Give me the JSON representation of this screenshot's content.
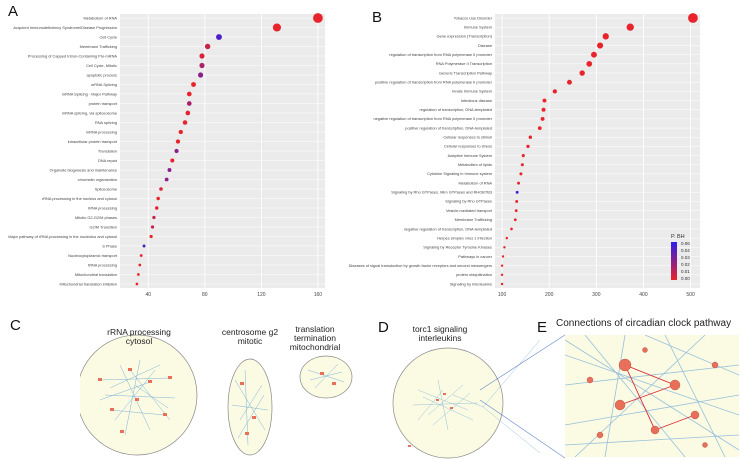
{
  "panel_labels": {
    "a": "A",
    "b": "B",
    "c": "C",
    "d": "D",
    "e": "E"
  },
  "colors": {
    "low": "#e8232b",
    "high": "#2b1ee8",
    "panel_bg": "#ebebeb",
    "ellipse_fill": "#fbfbe4",
    "node": "#e8705a",
    "edge": "#7fb2d8",
    "edge_red": "#d7303a"
  },
  "chart_data": [
    {
      "type": "scatter",
      "id": "A",
      "terms": [
        "Metabolism of RNA",
        "Acquired Immunodeficiency Syndrome/Disease Progression",
        "Cell Cycle",
        "Membrane Trafficking",
        "Processing of Capped Intron-Containing Pre-mRNA",
        "Cell Cycle, Mitotic",
        "apoptotic process",
        "mRNA Splicing",
        "mRNA Splicing - Major Pathway",
        "protein transport",
        "mRNA splicing, via spliceosome",
        "RNA splicing",
        "mRNA processing",
        "intracellular protein transport",
        "Translation",
        "DNA repair",
        "Organelle biogenesis and maintenance",
        "chromatin organization",
        "Spliceosome",
        "rRNA processing in the nucleus and cytosol",
        "rRNA processing",
        "Mitotic G2-G2/M phases",
        "G2/M Transition",
        "Major pathway of rRNA processing in the nucleolus and cytosol",
        "S Phase",
        "Nucleocytoplasmic transport",
        "tRNA processing",
        "Mitochondrial translation",
        "Mitochondrial translation initiation"
      ],
      "values": [
        160,
        131,
        90,
        82,
        78,
        78,
        77,
        72,
        69,
        69,
        68,
        66,
        63,
        61,
        60,
        57,
        55,
        53,
        49,
        47,
        46,
        44,
        43,
        42,
        37,
        35,
        34,
        33,
        32
      ],
      "padj": [
        0.06,
        0.06,
        0.01,
        0.05,
        0.055,
        0.04,
        0.03,
        0.06,
        0.06,
        0.04,
        0.058,
        0.06,
        0.06,
        0.06,
        0.03,
        0.06,
        0.03,
        0.03,
        0.055,
        0.06,
        0.06,
        0.05,
        0.05,
        0.06,
        0.01,
        0.06,
        0.06,
        0.06,
        0.06
      ],
      "ticks": [
        "40",
        "80",
        "120",
        "160"
      ],
      "xlim": [
        20,
        165
      ]
    },
    {
      "type": "scatter",
      "id": "B",
      "terms": [
        "Tobacco Use Disorder",
        "Immune System",
        "Gene expression (Transcription)",
        "Disease",
        "regulation of transcription from RNA polymerase II promoter",
        "RNA Polymerase II Transcription",
        "Generic Transcription Pathway",
        "positive regulation of transcription from RNA polymerase II promoter",
        "Innate Immune System",
        "Infectious disease",
        "regulation of transcription, DNA-templated",
        "negative regulation of transcription from RNA polymerase II promoter",
        "positive regulation of transcription, DNA-templated",
        "Cellular responses to stimuli",
        "Cellular responses to stress",
        "Adaptive Immune System",
        "Metabolism of lipids",
        "Cytokine Signaling in Immune system",
        "Metabolism of RNA",
        "Signaling by Rho GTPases, Miro GTPases and RHOBTB3",
        "Signaling by Rho GTPases",
        "Vesicle-mediated transport",
        "Membrane Trafficking",
        "negative regulation of transcription, DNA-templated",
        "Herpes simplex virus 1 infection",
        "Signaling by Receptor Tyrosine Kinases",
        "Pathways in cancer",
        "Diseases of signal transduction by growth factor receptors and second messengers",
        "protein ubiquitination",
        "Signaling by Interleukins"
      ],
      "values": [
        505,
        372,
        320,
        308,
        295,
        285,
        270,
        243,
        212,
        190,
        188,
        186,
        180,
        160,
        155,
        145,
        143,
        140,
        135,
        132,
        131,
        130,
        128,
        120,
        110,
        105,
        102,
        100,
        100,
        100
      ],
      "padj": [
        0.06,
        0.06,
        0.06,
        0.06,
        0.06,
        0.06,
        0.06,
        0.06,
        0.06,
        0.06,
        0.06,
        0.06,
        0.06,
        0.06,
        0.06,
        0.06,
        0.06,
        0.06,
        0.06,
        0.003,
        0.06,
        0.06,
        0.06,
        0.06,
        0.06,
        0.06,
        0.06,
        0.06,
        0.06,
        0.06
      ],
      "ticks": [
        "100",
        "200",
        "300",
        "400",
        "500"
      ],
      "xlim": [
        85,
        520
      ],
      "legend": {
        "title": "P. BH",
        "labels": [
          "0.06",
          "0.04",
          "0.03",
          "0.02",
          "0.01",
          "0.00"
        ]
      }
    }
  ],
  "panel_c": {
    "titles": [
      "rRNA processing\ncytosol",
      "centrosome g2\nmitotic",
      "translation\ntermination\nmitochondrial"
    ]
  },
  "panel_d": {
    "title": "torc1 signaling\ninterleukins"
  },
  "panel_e": {
    "title": "Connections of circadian clock pathway"
  }
}
